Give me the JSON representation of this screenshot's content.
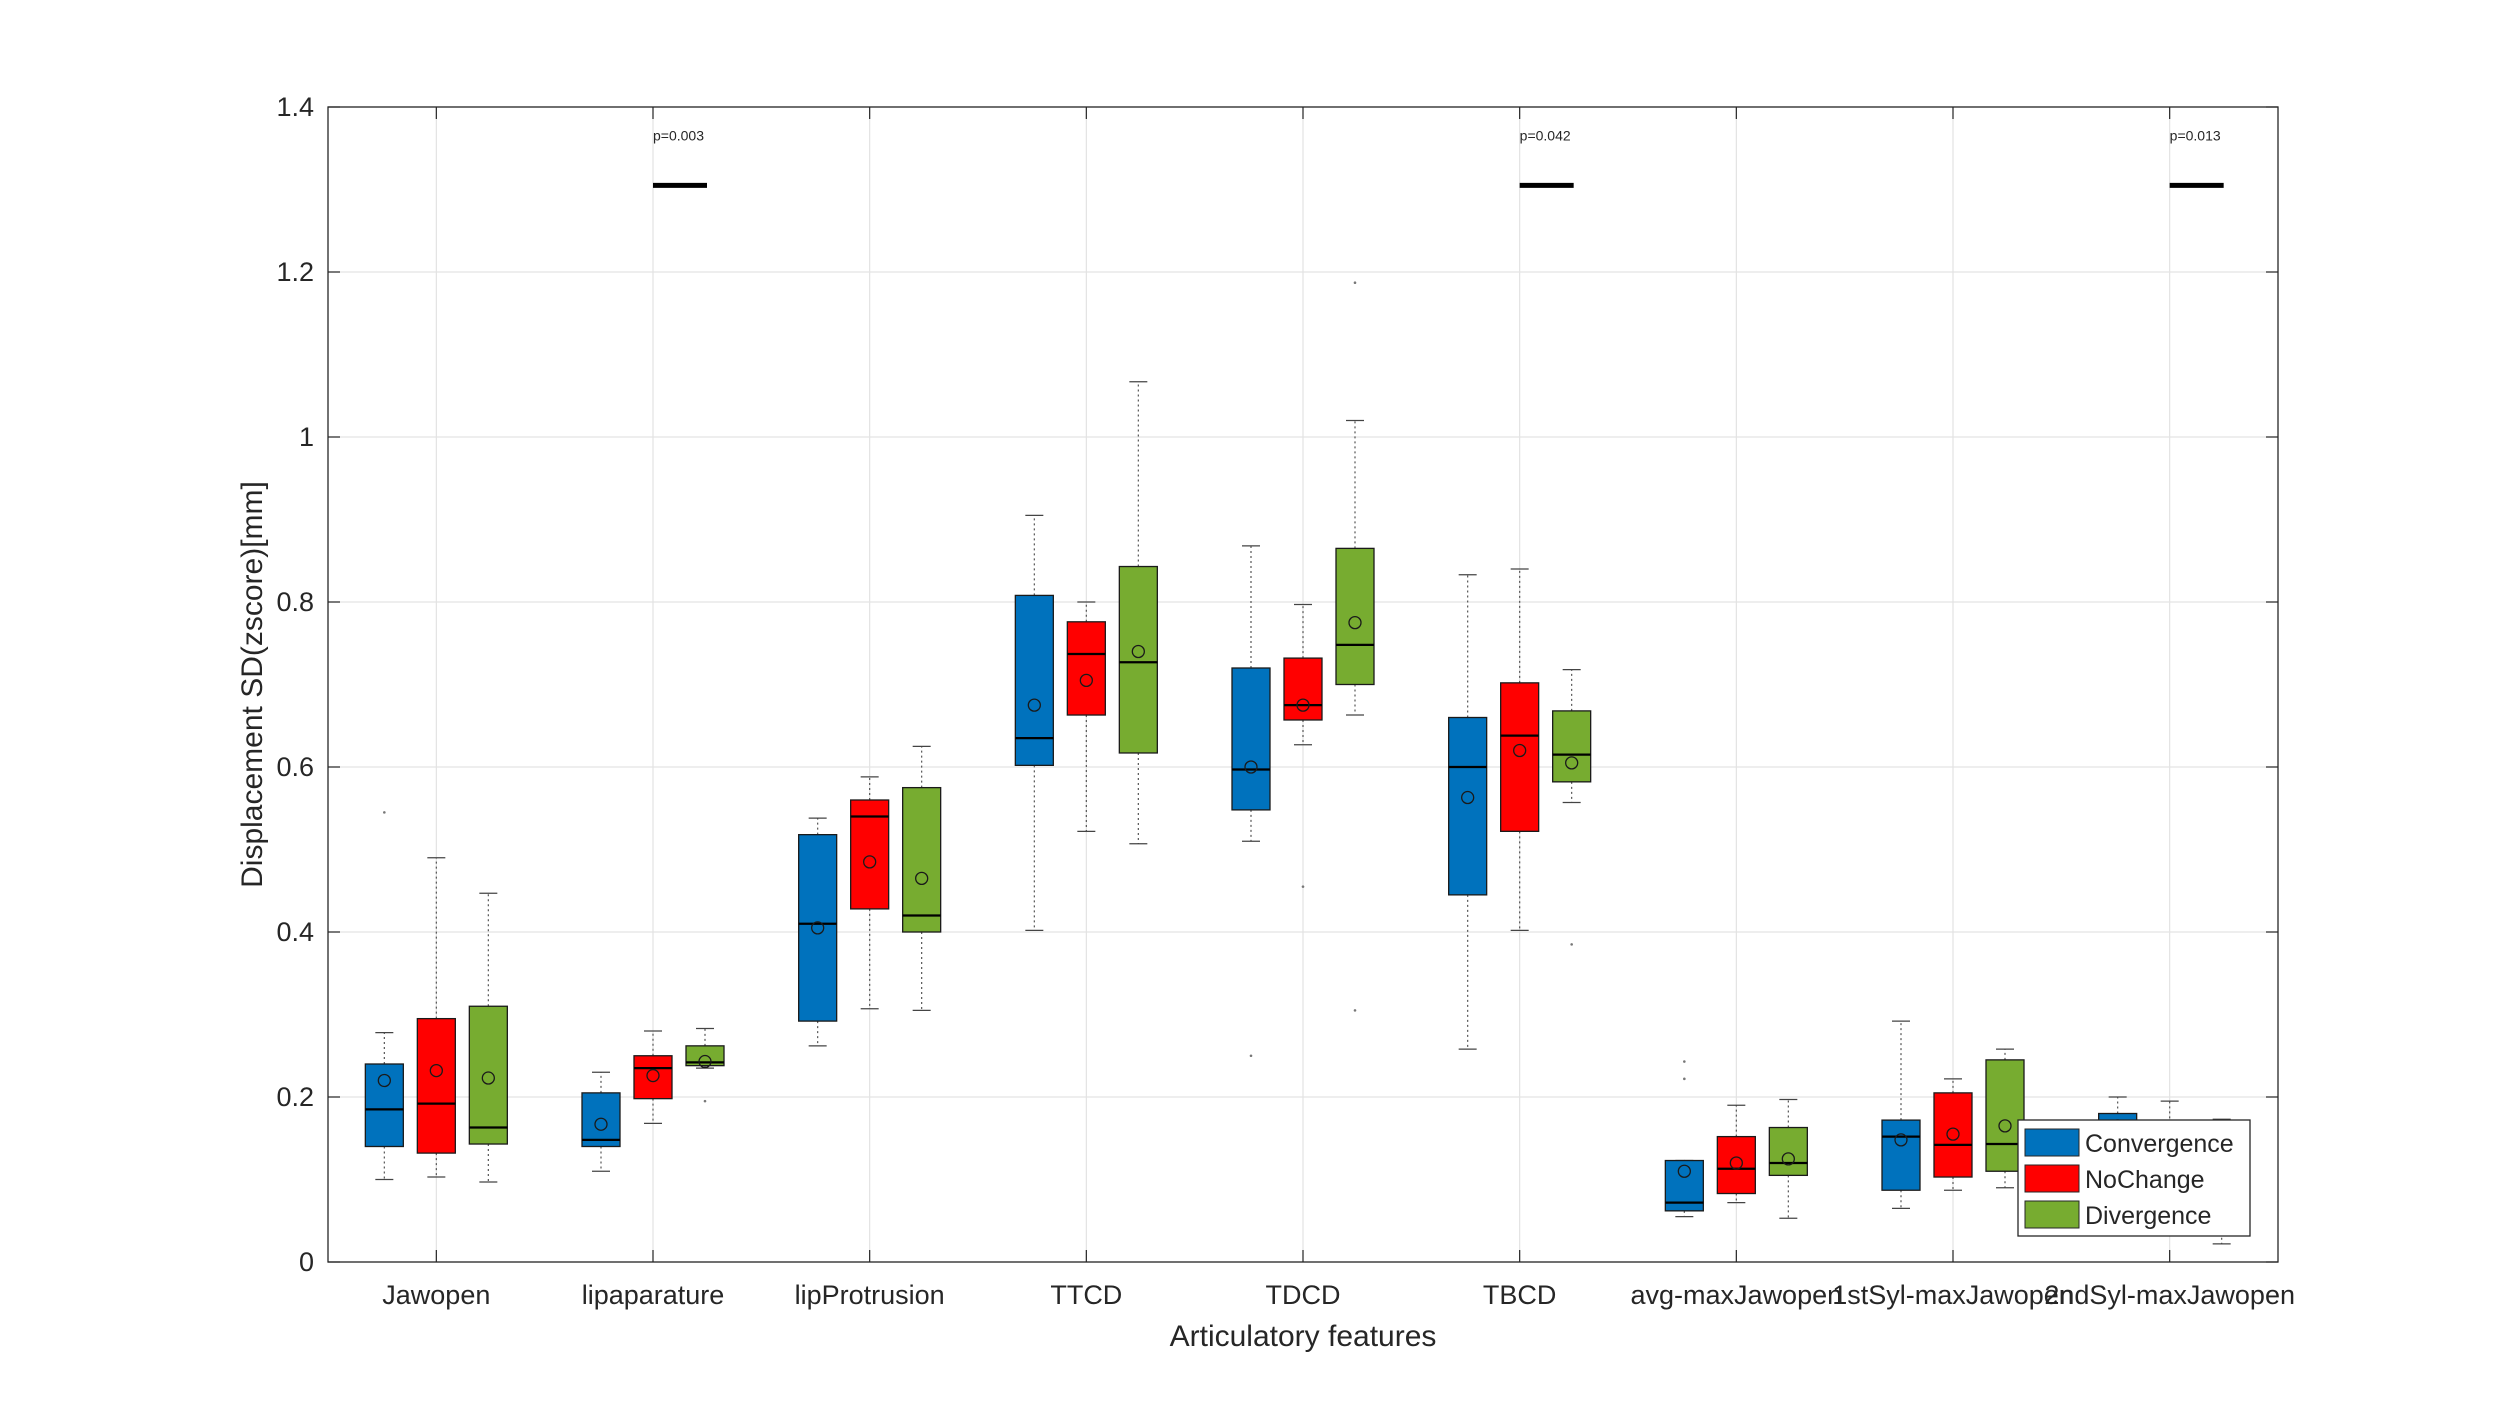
{
  "chart_data": {
    "type": "boxplot",
    "xlabel": "Articulatory features",
    "ylabel": "Displacement SD(zscore)[mm]",
    "ylim": [
      0,
      1.4
    ],
    "yticks": [
      0,
      0.2,
      0.4,
      0.6,
      0.8,
      1,
      1.2,
      1.4
    ],
    "ytick_labels": [
      "0",
      "0.2",
      "0.4",
      "0.6",
      "0.8",
      "1",
      "1.2",
      "1.4"
    ],
    "grid": true,
    "legend_position": "bottom-right",
    "categories": [
      "Jawopen",
      "lipaparature",
      "lipProtrusion",
      "TTCD",
      "TDCD",
      "TBCD",
      "avg-maxJawopen",
      "1stSyl-maxJawopen",
      "2ndSyl-maxJawopen"
    ],
    "series": [
      {
        "name": "Convergence",
        "color": "#0072BD",
        "boxes": [
          {
            "whisker_low": 0.1,
            "q1": 0.14,
            "median": 0.185,
            "q3": 0.24,
            "whisker_high": 0.278,
            "mean": 0.22,
            "outliers": [
              0.545
            ]
          },
          {
            "whisker_low": 0.11,
            "q1": 0.14,
            "median": 0.148,
            "q3": 0.205,
            "whisker_high": 0.23,
            "mean": 0.167,
            "outliers": []
          },
          {
            "whisker_low": 0.262,
            "q1": 0.292,
            "median": 0.41,
            "q3": 0.518,
            "whisker_high": 0.538,
            "mean": 0.405,
            "outliers": []
          },
          {
            "whisker_low": 0.402,
            "q1": 0.602,
            "median": 0.635,
            "q3": 0.808,
            "whisker_high": 0.905,
            "mean": 0.675,
            "outliers": []
          },
          {
            "whisker_low": 0.51,
            "q1": 0.548,
            "median": 0.597,
            "q3": 0.72,
            "whisker_high": 0.868,
            "mean": 0.6,
            "outliers": [
              0.25
            ]
          },
          {
            "whisker_low": 0.258,
            "q1": 0.445,
            "median": 0.6,
            "q3": 0.66,
            "whisker_high": 0.833,
            "mean": 0.563,
            "outliers": []
          },
          {
            "whisker_low": 0.055,
            "q1": 0.062,
            "median": 0.072,
            "q3": 0.123,
            "whisker_high": 0.123,
            "mean": 0.11,
            "outliers": [
              0.243,
              0.222
            ]
          },
          {
            "whisker_low": 0.065,
            "q1": 0.087,
            "median": 0.152,
            "q3": 0.172,
            "whisker_high": 0.292,
            "mean": 0.148,
            "outliers": []
          },
          {
            "whisker_low": 0.135,
            "q1": 0.15,
            "median": 0.165,
            "q3": 0.18,
            "whisker_high": 0.2,
            "mean": 0.165,
            "outliers": []
          }
        ]
      },
      {
        "name": "NoChange",
        "color": "#FF0000",
        "boxes": [
          {
            "whisker_low": 0.103,
            "q1": 0.132,
            "median": 0.192,
            "q3": 0.295,
            "whisker_high": 0.49,
            "mean": 0.232,
            "outliers": []
          },
          {
            "whisker_low": 0.168,
            "q1": 0.198,
            "median": 0.235,
            "q3": 0.25,
            "whisker_high": 0.28,
            "mean": 0.226,
            "outliers": []
          },
          {
            "whisker_low": 0.307,
            "q1": 0.428,
            "median": 0.54,
            "q3": 0.56,
            "whisker_high": 0.588,
            "mean": 0.485,
            "outliers": []
          },
          {
            "whisker_low": 0.522,
            "q1": 0.663,
            "median": 0.737,
            "q3": 0.776,
            "whisker_high": 0.8,
            "mean": 0.705,
            "outliers": []
          },
          {
            "whisker_low": 0.627,
            "q1": 0.657,
            "median": 0.675,
            "q3": 0.732,
            "whisker_high": 0.797,
            "mean": 0.675,
            "outliers": [
              0.455
            ]
          },
          {
            "whisker_low": 0.402,
            "q1": 0.522,
            "median": 0.638,
            "q3": 0.702,
            "whisker_high": 0.84,
            "mean": 0.62,
            "outliers": []
          },
          {
            "whisker_low": 0.072,
            "q1": 0.083,
            "median": 0.113,
            "q3": 0.152,
            "whisker_high": 0.19,
            "mean": 0.12,
            "outliers": []
          },
          {
            "whisker_low": 0.087,
            "q1": 0.103,
            "median": 0.142,
            "q3": 0.205,
            "whisker_high": 0.222,
            "mean": 0.155,
            "outliers": []
          },
          {
            "whisker_low": 0.14,
            "q1": 0.15,
            "median": 0.16,
            "q3": 0.168,
            "whisker_high": 0.195,
            "mean": 0.16,
            "outliers": []
          }
        ]
      },
      {
        "name": "Divergence",
        "color": "#77AC30",
        "boxes": [
          {
            "whisker_low": 0.097,
            "q1": 0.143,
            "median": 0.163,
            "q3": 0.31,
            "whisker_high": 0.447,
            "mean": 0.223,
            "outliers": []
          },
          {
            "whisker_low": 0.235,
            "q1": 0.238,
            "median": 0.242,
            "q3": 0.262,
            "whisker_high": 0.283,
            "mean": 0.243,
            "outliers": [
              0.195
            ]
          },
          {
            "whisker_low": 0.305,
            "q1": 0.4,
            "median": 0.42,
            "q3": 0.575,
            "whisker_high": 0.625,
            "mean": 0.465,
            "outliers": []
          },
          {
            "whisker_low": 0.507,
            "q1": 0.617,
            "median": 0.727,
            "q3": 0.843,
            "whisker_high": 1.067,
            "mean": 0.74,
            "outliers": []
          },
          {
            "whisker_low": 0.663,
            "q1": 0.7,
            "median": 0.748,
            "q3": 0.865,
            "whisker_high": 1.02,
            "mean": 0.775,
            "outliers": [
              1.187,
              0.305
            ]
          },
          {
            "whisker_low": 0.557,
            "q1": 0.582,
            "median": 0.615,
            "q3": 0.668,
            "whisker_high": 0.718,
            "mean": 0.605,
            "outliers": [
              0.385
            ]
          },
          {
            "whisker_low": 0.053,
            "q1": 0.105,
            "median": 0.12,
            "q3": 0.163,
            "whisker_high": 0.197,
            "mean": 0.125,
            "outliers": []
          },
          {
            "whisker_low": 0.09,
            "q1": 0.11,
            "median": 0.143,
            "q3": 0.245,
            "whisker_high": 0.258,
            "mean": 0.165,
            "outliers": []
          },
          {
            "whisker_low": 0.022,
            "q1": 0.09,
            "median": 0.12,
            "q3": 0.15,
            "whisker_high": 0.173,
            "mean": 0.12,
            "outliers": []
          }
        ]
      }
    ],
    "annotations": [
      {
        "category": "lipaparature",
        "text": "p=0.003",
        "y": 1.305
      },
      {
        "category": "TBCD",
        "text": "p=0.042",
        "y": 1.305
      },
      {
        "category": "2ndSyl-maxJawopen",
        "text": "p=0.013",
        "y": 1.305
      }
    ]
  }
}
